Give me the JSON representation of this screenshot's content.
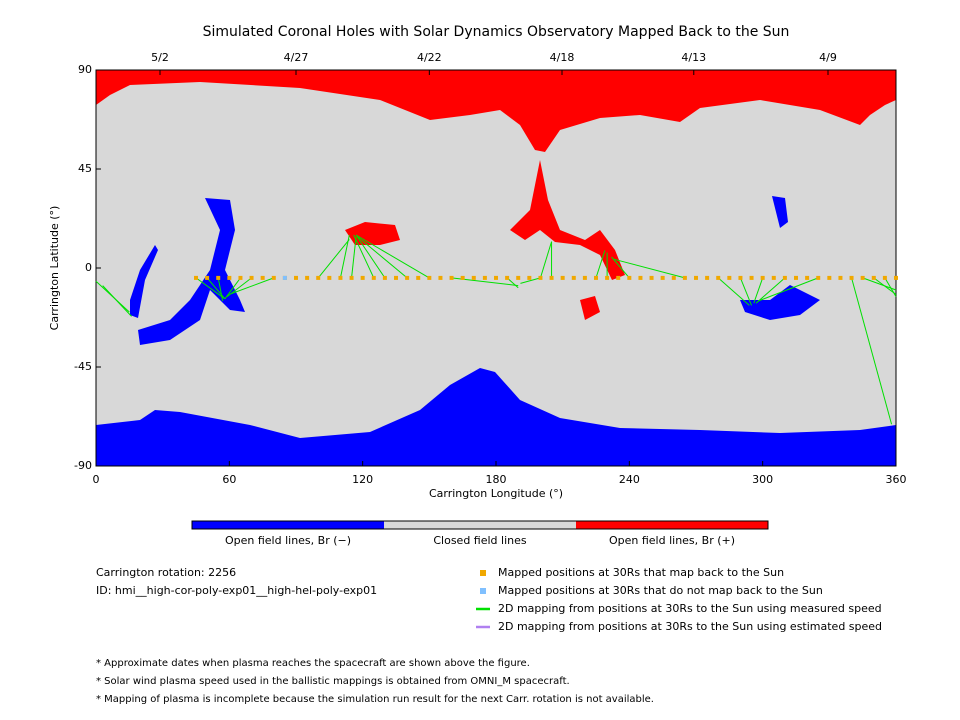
{
  "chart_data": {
    "type": "map",
    "title": "Simulated Coronal Holes with Solar Dynamics Observatory Mapped Back to the Sun",
    "xlabel": "Carrington Longitude (°)",
    "ylabel": "Carrington Latitude (°)",
    "xlim": [
      0,
      360
    ],
    "ylim": [
      -90,
      90
    ],
    "xticks": [
      0,
      60,
      120,
      180,
      240,
      300,
      360
    ],
    "yticks": [
      -90,
      -45,
      0,
      45,
      90
    ],
    "x2ticks": [
      {
        "value": 28.8,
        "label": "5/2"
      },
      {
        "value": 90,
        "label": "4/27"
      },
      {
        "value": 150,
        "label": "4/22"
      },
      {
        "value": 209.7,
        "label": "4/18"
      },
      {
        "value": 269,
        "label": "4/13"
      },
      {
        "value": 329.4,
        "label": "4/9"
      }
    ],
    "colorbar": [
      {
        "name": "Open field lines, Br (−)",
        "color": "#0000ff"
      },
      {
        "name": "Closed field lines",
        "color": "#d8d8d8"
      },
      {
        "name": "Open field lines, Br (+)",
        "color": "#ff0000"
      }
    ],
    "series": [
      {
        "name": "Mapped positions at 30Rs that map back to the Sun",
        "color": "#f0a800",
        "x": [
          45,
          50,
          55,
          60,
          65,
          70,
          75,
          80,
          85,
          90,
          95,
          100,
          105,
          110,
          115,
          120,
          125,
          130,
          135,
          140,
          145,
          150,
          155,
          160,
          165,
          170,
          175,
          180,
          185,
          190,
          195,
          200,
          205,
          210,
          215,
          220,
          225,
          230,
          235,
          240,
          245,
          250,
          255,
          260,
          265,
          270,
          275,
          280,
          285,
          290,
          295,
          300,
          305,
          310,
          315,
          320,
          325,
          330,
          335,
          340,
          345,
          350,
          355,
          360
        ],
        "y": [
          -4.5,
          -4.5,
          -4.5,
          -4.5,
          -4.5,
          -4.5,
          -4.5,
          -4.5,
          -4.5,
          -4.5,
          -4.5,
          -4.5,
          -4.5,
          -4.5,
          -4.5,
          -4.5,
          -4.5,
          -4.5,
          -4.5,
          -4.5,
          -4.5,
          -4.5,
          -4.5,
          -4.5,
          -4.5,
          -4.5,
          -4.5,
          -4.5,
          -4.5,
          -4.5,
          -4.5,
          -4.5,
          -4.5,
          -4.5,
          -4.5,
          -4.5,
          -4.5,
          -4.5,
          -4.5,
          -4.5,
          -4.5,
          -4.5,
          -4.5,
          -4.5,
          -4.5,
          -4.5,
          -4.5,
          -4.5,
          -4.5,
          -4.5,
          -4.5,
          -4.5,
          -4.5,
          -4.5,
          -4.5,
          -4.5,
          -4.5,
          -4.5,
          -4.5,
          -4.5,
          -4.5,
          -4.5,
          -4.5,
          -4.5
        ]
      },
      {
        "name": "Mapped positions at 30Rs that do not map back to the Sun",
        "color": "#80c0ff",
        "x": [
          85
        ],
        "y": [
          -4.5
        ]
      },
      {
        "name": "2D mapping from positions at 30Rs to the Sun using measured speed",
        "color": "#00e000",
        "segments": [
          {
            "x": [
              0,
              15
            ],
            "y": [
              -6,
              -20
            ]
          },
          {
            "x": [
              3,
              16
            ],
            "y": [
              -8,
              -22
            ]
          },
          {
            "x": [
              345,
              360
            ],
            "y": [
              -4.5,
              -10
            ]
          },
          {
            "x": [
              350,
              360
            ],
            "y": [
              -4.5,
              -12
            ]
          },
          {
            "x": [
              355,
              360
            ],
            "y": [
              -4.5,
              -13
            ]
          },
          {
            "x": [
              45,
              58
            ],
            "y": [
              -4.5,
              -14
            ]
          },
          {
            "x": [
              50,
              58
            ],
            "y": [
              -4.5,
              -14
            ]
          },
          {
            "x": [
              55,
              57
            ],
            "y": [
              -4.5,
              -15
            ]
          },
          {
            "x": [
              65,
              58
            ],
            "y": [
              -4.5,
              -14
            ]
          },
          {
            "x": [
              70,
              59
            ],
            "y": [
              -4.5,
              -13
            ]
          },
          {
            "x": [
              80,
              60
            ],
            "y": [
              -4.5,
              -12
            ]
          },
          {
            "x": [
              100,
              114
            ],
            "y": [
              -4.5,
              13
            ]
          },
          {
            "x": [
              110,
              114
            ],
            "y": [
              -4.5,
              15
            ]
          },
          {
            "x": [
              115,
              117
            ],
            "y": [
              -4.5,
              14
            ]
          },
          {
            "x": [
              125,
              116
            ],
            "y": [
              -4.5,
              15
            ]
          },
          {
            "x": [
              130,
              117
            ],
            "y": [
              -4.5,
              15
            ]
          },
          {
            "x": [
              140,
              118
            ],
            "y": [
              -4.5,
              14
            ]
          },
          {
            "x": [
              150,
              117
            ],
            "y": [
              -4.5,
              15
            ]
          },
          {
            "x": [
              160,
              190
            ],
            "y": [
              -4.5,
              -8
            ]
          },
          {
            "x": [
              185,
              190
            ],
            "y": [
              -4.5,
              -9
            ]
          },
          {
            "x": [
              200,
              191
            ],
            "y": [
              -4.5,
              -7
            ]
          },
          {
            "x": [
              200,
              205
            ],
            "y": [
              -4.5,
              12
            ]
          },
          {
            "x": [
              205,
              205
            ],
            "y": [
              -4.5,
              12
            ]
          },
          {
            "x": [
              225,
              229
            ],
            "y": [
              -4.5,
              8
            ]
          },
          {
            "x": [
              230,
              230
            ],
            "y": [
              -4.5,
              7
            ]
          },
          {
            "x": [
              240,
              232
            ],
            "y": [
              -4.5,
              5
            ]
          },
          {
            "x": [
              265,
              233
            ],
            "y": [
              -4.5,
              4
            ]
          },
          {
            "x": [
              280,
              294
            ],
            "y": [
              -4.5,
              -17
            ]
          },
          {
            "x": [
              290,
              295
            ],
            "y": [
              -4.5,
              -17
            ]
          },
          {
            "x": [
              300,
              296
            ],
            "y": [
              -4.5,
              -16
            ]
          },
          {
            "x": [
              310,
              297
            ],
            "y": [
              -4.5,
              -16
            ]
          },
          {
            "x": [
              325,
              298
            ],
            "y": [
              -4.5,
              -15
            ]
          },
          {
            "x": [
              340,
              358
            ],
            "y": [
              -4.5,
              -71
            ]
          }
        ]
      },
      {
        "name": "2D mapping from positions at 30Rs to the Sun using estimated speed",
        "color": "#b080f0"
      }
    ],
    "info": [
      "Carrington rotation: 2256",
      "ID: hmi__high-cor-poly-exp01__high-hel-poly-exp01"
    ],
    "notes": [
      "* Approximate dates when plasma reaches the spacecraft are shown above the figure.",
      "* Solar wind plasma speed used in the ballistic mappings is obtained from OMNI_M spacecraft.",
      "* Mapping of plasma is incomplete because the simulation run result for the next Carr. rotation is not available."
    ]
  }
}
